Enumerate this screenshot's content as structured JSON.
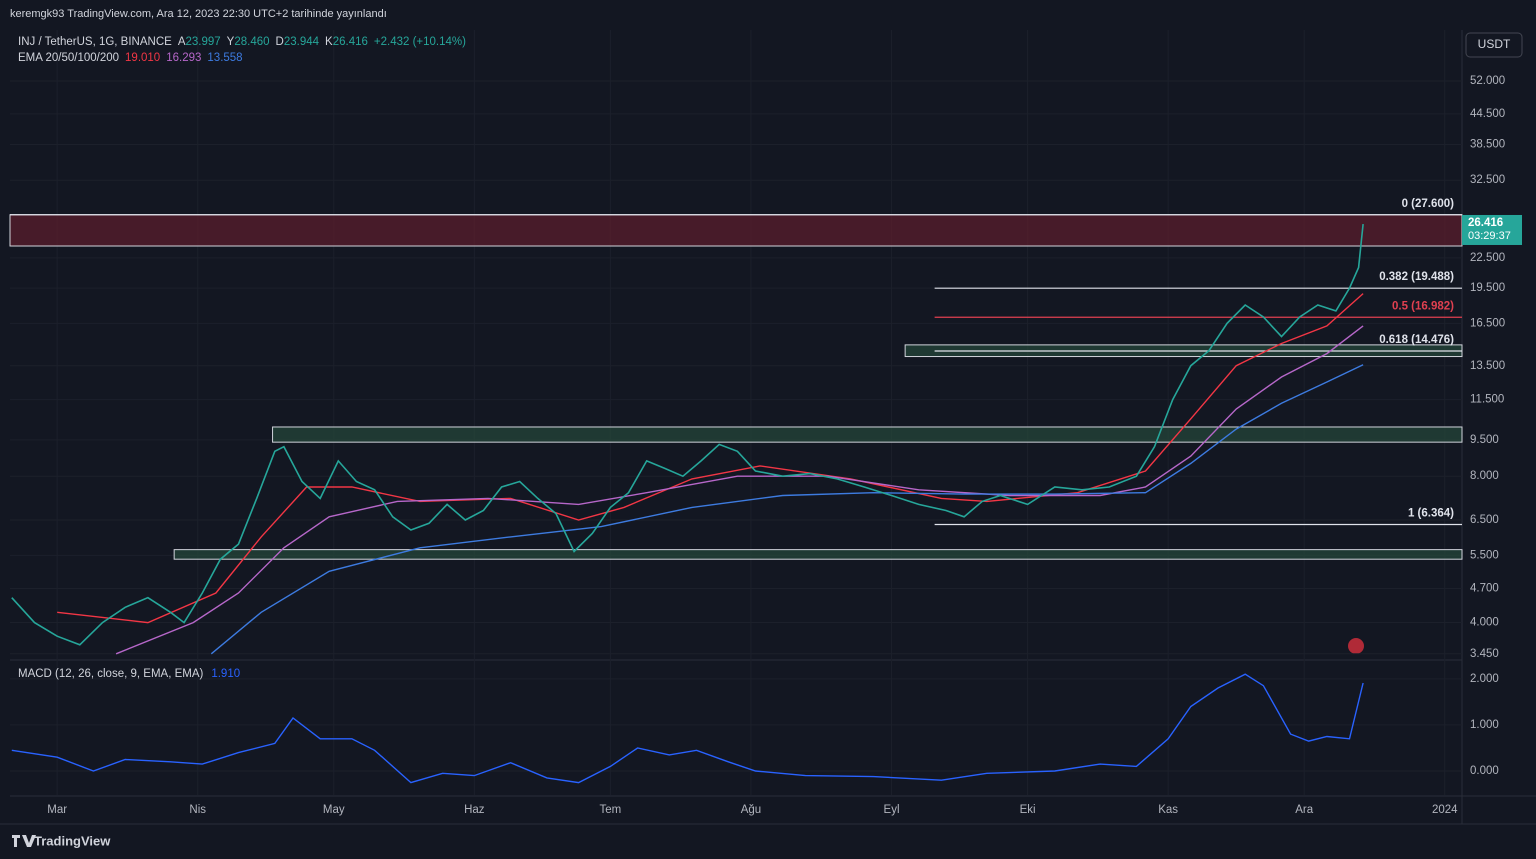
{
  "chart_data": {
    "type": "line",
    "title": "keremgk93 TradingView.com, Ara 12, 2023 22:30 UTC+2 tarihinde yayınlandı",
    "ohlc": [
      {
        "key": "A",
        "value": "23.997"
      },
      {
        "key": "Y",
        "value": "28.460"
      },
      {
        "key": "D",
        "value": "23.944"
      },
      {
        "key": "K",
        "value": "26.416"
      }
    ],
    "change": "+2.432 (+10.14%)",
    "currency": "USDT",
    "last_price": 26.416,
    "countdown": "03:29:37",
    "log_scale": true,
    "xlim": [
      49.6,
      369.8
    ],
    "xticks": [
      {
        "value": 60,
        "label": "Mar"
      },
      {
        "value": 91,
        "label": "Nis"
      },
      {
        "value": 121,
        "label": "May"
      },
      {
        "value": 152,
        "label": "Haz"
      },
      {
        "value": 182,
        "label": "Tem"
      },
      {
        "value": 213,
        "label": "Ağu"
      },
      {
        "value": 244,
        "label": "Eyl"
      },
      {
        "value": 274,
        "label": "Eki"
      },
      {
        "value": 305,
        "label": "Kas"
      },
      {
        "value": 335,
        "label": "Ara"
      },
      {
        "value": 366,
        "label": "2024"
      }
    ],
    "ylim": [
      3.35,
      66.2
    ],
    "yticks": [
      {
        "value": 52,
        "label": "52.000"
      },
      {
        "value": 44.5,
        "label": "44.500"
      },
      {
        "value": 38.5,
        "label": "38.500"
      },
      {
        "value": 32.5,
        "label": "32.500"
      },
      {
        "value": 22.5,
        "label": "22.500"
      },
      {
        "value": 19.5,
        "label": "19.500"
      },
      {
        "value": 16.5,
        "label": "16.500"
      },
      {
        "value": 13.5,
        "label": "13.500"
      },
      {
        "value": 11.5,
        "label": "11.500"
      },
      {
        "value": 9.5,
        "label": "9.500"
      },
      {
        "value": 8,
        "label": "8.000"
      },
      {
        "value": 6.5,
        "label": "6.500"
      },
      {
        "value": 5.5,
        "label": "5.500"
      },
      {
        "value": 4.7,
        "label": "4.700"
      },
      {
        "value": 4,
        "label": "4.000"
      },
      {
        "value": 3.45,
        "label": "3.450"
      }
    ],
    "series": [
      {
        "name": "INJ / TetherUS, 1G, BINANCE",
        "color": "#26a69a",
        "x": [
          50,
          55,
          60,
          65,
          70,
          75,
          80,
          85,
          88,
          92,
          96,
          100,
          104,
          108,
          110,
          114,
          118,
          122,
          126,
          130,
          134,
          138,
          142,
          146,
          150,
          154,
          158,
          162,
          166,
          170,
          174,
          178,
          182,
          186,
          190,
          194,
          198,
          202,
          206,
          210,
          214,
          220,
          226,
          232,
          238,
          244,
          250,
          256,
          260,
          264,
          268,
          274,
          280,
          286,
          292,
          298,
          302,
          306,
          310,
          314,
          318,
          322,
          326,
          330,
          334,
          338,
          342,
          345,
          347,
          348
        ],
        "values": [
          4.5,
          4.0,
          3.75,
          3.6,
          4.0,
          4.3,
          4.5,
          4.2,
          4.0,
          4.6,
          5.4,
          5.8,
          7.2,
          9.0,
          9.2,
          7.8,
          7.2,
          8.6,
          7.8,
          7.5,
          6.6,
          6.2,
          6.4,
          7.0,
          6.5,
          6.8,
          7.6,
          7.8,
          7.2,
          6.7,
          5.6,
          6.1,
          6.9,
          7.4,
          8.6,
          8.3,
          8.0,
          8.6,
          9.3,
          9.0,
          8.2,
          8.0,
          8.1,
          7.9,
          7.6,
          7.3,
          7.0,
          6.8,
          6.6,
          7.1,
          7.3,
          7.0,
          7.6,
          7.5,
          7.6,
          8.0,
          9.2,
          11.5,
          13.5,
          14.5,
          16.5,
          18.0,
          17.0,
          15.5,
          17.0,
          18.0,
          17.5,
          19.5,
          21.5,
          26.4
        ]
      }
    ],
    "ema": {
      "label": "EMA 20/50/100/200",
      "lines": [
        {
          "last": "19.010",
          "color": "#f23645",
          "x": [
            60,
            80,
            95,
            105,
            115,
            125,
            140,
            160,
            175,
            185,
            200,
            215,
            235,
            255,
            265,
            285,
            300,
            310,
            320,
            330,
            340,
            348
          ],
          "values": [
            4.2,
            4.0,
            4.6,
            6.0,
            7.6,
            7.6,
            7.1,
            7.2,
            6.5,
            6.9,
            7.9,
            8.4,
            7.9,
            7.2,
            7.1,
            7.4,
            8.2,
            10.5,
            13.5,
            15.0,
            16.3,
            19.0
          ]
        },
        {
          "last": "16.293",
          "color": "#b667c9",
          "x": [
            73,
            90,
            100,
            110,
            120,
            135,
            155,
            175,
            190,
            210,
            230,
            250,
            270,
            290,
            300,
            310,
            320,
            330,
            340,
            348
          ],
          "values": [
            3.45,
            4.0,
            4.6,
            5.7,
            6.6,
            7.1,
            7.2,
            7.0,
            7.4,
            8.0,
            8.0,
            7.5,
            7.3,
            7.3,
            7.6,
            8.8,
            11.0,
            12.8,
            14.3,
            16.3
          ]
        },
        {
          "last": "13.558",
          "color": "#3d7be0",
          "x": [
            94,
            105,
            120,
            140,
            160,
            180,
            200,
            220,
            240,
            260,
            280,
            300,
            310,
            320,
            330,
            340,
            348
          ],
          "values": [
            3.45,
            4.2,
            5.1,
            5.7,
            6.0,
            6.3,
            6.9,
            7.3,
            7.4,
            7.35,
            7.35,
            7.4,
            8.5,
            10.0,
            11.3,
            12.5,
            13.56
          ]
        }
      ]
    },
    "fib": [
      {
        "label": "0 (27.600)",
        "value": 27.6,
        "from": 49.6,
        "color": "#e0e3eb"
      },
      {
        "label": "0.382 (19.488)",
        "value": 19.488,
        "from": 253.5,
        "color": "#e0e3eb"
      },
      {
        "label": "0.5 (16.982)",
        "value": 16.982,
        "from": 253.5,
        "color": "#e04050"
      },
      {
        "label": "0.618 (14.476)",
        "value": 14.476,
        "from": 253.5,
        "color": "#e0e3eb"
      },
      {
        "label": "1 (6.364)",
        "value": 6.364,
        "from": 253.5,
        "color": "#e0e3eb"
      }
    ],
    "zones": [
      {
        "low": 23.8,
        "high": 27.6,
        "from": 49.6,
        "color": "#5a1e2c"
      },
      {
        "low": 14.1,
        "high": 14.9,
        "from": 247,
        "color": "#24453a"
      },
      {
        "low": 9.4,
        "high": 10.1,
        "from": 107.5,
        "color": "#24453a"
      },
      {
        "low": 5.4,
        "high": 5.65,
        "from": 85.8,
        "color": "#24453a"
      }
    ],
    "macd": {
      "label": "MACD (12, 26, close, 9, EMA, EMA)",
      "last": "1.910",
      "color": "#2962ff",
      "ylim": [
        -0.52,
        2.3
      ],
      "yticks": [
        {
          "value": 2,
          "label": "2.000"
        },
        {
          "value": 1,
          "label": "1.000"
        },
        {
          "value": 0,
          "label": "0.000"
        }
      ],
      "x": [
        50,
        60,
        68,
        75,
        85,
        92,
        100,
        108,
        112,
        118,
        125,
        130,
        138,
        145,
        152,
        160,
        168,
        175,
        182,
        188,
        195,
        201,
        208,
        214,
        225,
        240,
        255,
        265,
        280,
        290,
        298,
        305,
        310,
        316,
        322,
        326,
        332,
        336,
        340,
        345,
        348
      ],
      "values": [
        0.45,
        0.3,
        0.0,
        0.25,
        0.2,
        0.15,
        0.4,
        0.6,
        1.15,
        0.7,
        0.7,
        0.45,
        -0.25,
        -0.05,
        -0.1,
        0.18,
        -0.15,
        -0.25,
        0.1,
        0.5,
        0.35,
        0.45,
        0.2,
        0.0,
        -0.1,
        -0.12,
        -0.2,
        -0.05,
        0.0,
        0.15,
        0.1,
        0.7,
        1.4,
        1.8,
        2.1,
        1.85,
        0.8,
        0.65,
        0.75,
        0.7,
        1.91
      ]
    },
    "footer": "TradingView"
  }
}
